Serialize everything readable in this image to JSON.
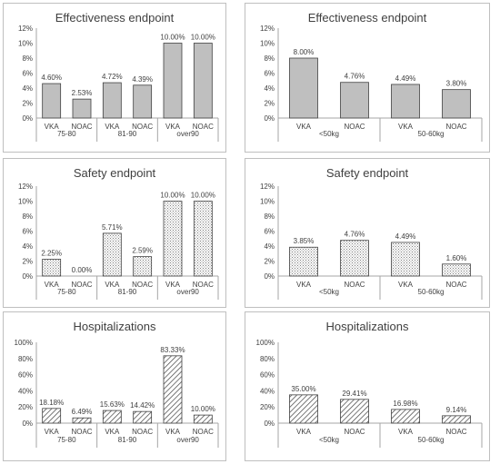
{
  "colors": {
    "bar_fill": "#bfbfbf",
    "bar_stroke": "#404040",
    "axis": "#a6a6a6",
    "text": "#404040",
    "hatch": "#404040"
  },
  "chart_data": [
    {
      "type": "bar",
      "title": "Effectiveness endpoint",
      "groups": [
        "75-80",
        "81-90",
        "over90"
      ],
      "categories": [
        "VKA",
        "NOAC",
        "VKA",
        "NOAC",
        "VKA",
        "NOAC"
      ],
      "values": [
        4.6,
        2.53,
        4.72,
        4.39,
        10.0,
        10.0
      ],
      "data_labels": [
        "4.60%",
        "2.53%",
        "4.72%",
        "4.39%",
        "10.00%",
        "10.00%"
      ],
      "ylim": [
        0,
        12
      ],
      "yticks": [
        "0%",
        "2%",
        "4%",
        "6%",
        "8%",
        "10%",
        "12%"
      ],
      "fill": "solid"
    },
    {
      "type": "bar",
      "title": "Effectiveness endpoint",
      "groups": [
        "<50kg",
        "50-60kg"
      ],
      "categories": [
        "VKA",
        "NOAC",
        "VKA",
        "NOAC"
      ],
      "values": [
        8.0,
        4.76,
        4.49,
        3.8
      ],
      "data_labels": [
        "8.00%",
        "4.76%",
        "4.49%",
        "3.80%"
      ],
      "ylim": [
        0,
        12
      ],
      "yticks": [
        "0%",
        "2%",
        "4%",
        "6%",
        "8%",
        "10%",
        "12%"
      ],
      "fill": "solid"
    },
    {
      "type": "bar",
      "title": "Safety endpoint",
      "groups": [
        "75-80",
        "81-90",
        "over90"
      ],
      "categories": [
        "VKA",
        "NOAC",
        "VKA",
        "NOAC",
        "VKA",
        "NOAC"
      ],
      "values": [
        2.25,
        0.0,
        5.71,
        2.59,
        10.0,
        10.0
      ],
      "data_labels": [
        "2.25%",
        "0.00%",
        "5.71%",
        "2.59%",
        "10.00%",
        "10.00%"
      ],
      "ylim": [
        0,
        12
      ],
      "yticks": [
        "0%",
        "2%",
        "4%",
        "6%",
        "8%",
        "10%",
        "12%"
      ],
      "fill": "dotted"
    },
    {
      "type": "bar",
      "title": "Safety endpoint",
      "groups": [
        "<50kg",
        "50-60kg"
      ],
      "categories": [
        "VKA",
        "NOAC",
        "VKA",
        "NOAC"
      ],
      "values": [
        3.85,
        4.76,
        4.49,
        1.6
      ],
      "data_labels": [
        "3.85%",
        "4.76%",
        "4.49%",
        "1.60%"
      ],
      "ylim": [
        0,
        12
      ],
      "yticks": [
        "0%",
        "2%",
        "4%",
        "6%",
        "8%",
        "10%",
        "12%"
      ],
      "fill": "dotted"
    },
    {
      "type": "bar",
      "title": "Hospitalizations",
      "groups": [
        "75-80",
        "81-90",
        "over90"
      ],
      "categories": [
        "VKA",
        "NOAC",
        "VKA",
        "NOAC",
        "VKA",
        "NOAC"
      ],
      "values": [
        18.18,
        6.49,
        15.63,
        14.42,
        83.33,
        10.0
      ],
      "data_labels": [
        "18.18%",
        "6.49%",
        "15.63%",
        "14.42%",
        "83.33%",
        "10.00%"
      ],
      "ylim": [
        0,
        100
      ],
      "yticks": [
        "0%",
        "20%",
        "40%",
        "60%",
        "80%",
        "100%"
      ],
      "fill": "hatched"
    },
    {
      "type": "bar",
      "title": "Hospitalizations",
      "groups": [
        "<50kg",
        "50-60kg"
      ],
      "categories": [
        "VKA",
        "NOAC",
        "VKA",
        "NOAC"
      ],
      "values": [
        35.0,
        29.41,
        16.98,
        9.14
      ],
      "data_labels": [
        "35.00%",
        "29.41%",
        "16.98%",
        "9.14%"
      ],
      "ylim": [
        0,
        100
      ],
      "yticks": [
        "0%",
        "20%",
        "40%",
        "60%",
        "80%",
        "100%"
      ],
      "fill": "hatched"
    }
  ]
}
